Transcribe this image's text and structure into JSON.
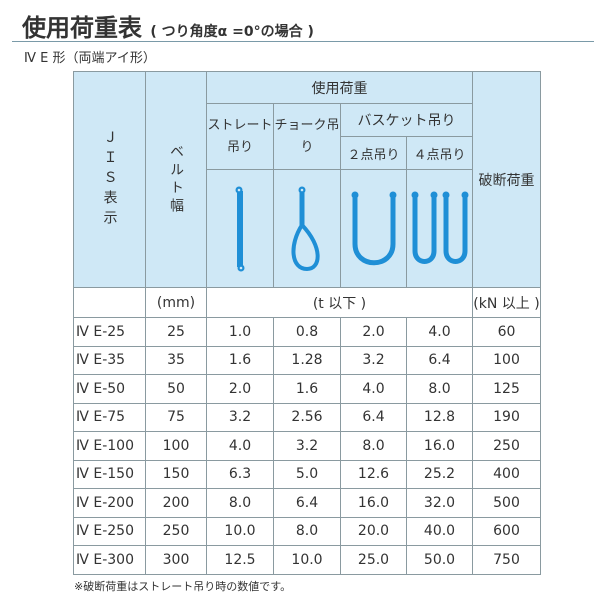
{
  "title": "使用荷重表",
  "title_sub": "( つり角度α =0°の場合 )",
  "subtitle": "Ⅳ E 形（両端アイ形）",
  "header": {
    "jis": "ＪＩＳ表示",
    "belt": "ベルト幅",
    "working_load": "使用荷重",
    "straight": "ストレート吊り",
    "choke": "チョーク吊り",
    "basket": "バスケット吊り",
    "two_point": "２点吊り",
    "four_point": "４点吊り",
    "breaking": "破断荷重"
  },
  "units": {
    "belt": "(mm)",
    "load": "(t 以下 )",
    "breaking": "(kN 以上 )"
  },
  "rows": [
    [
      "Ⅳ E-25",
      "25",
      "1.0",
      "0.8",
      "2.0",
      "4.0",
      "60"
    ],
    [
      "Ⅳ E-35",
      "35",
      "1.6",
      "1.28",
      "3.2",
      "6.4",
      "100"
    ],
    [
      "Ⅳ E-50",
      "50",
      "2.0",
      "1.6",
      "4.0",
      "8.0",
      "125"
    ],
    [
      "Ⅳ E-75",
      "75",
      "3.2",
      "2.56",
      "6.4",
      "12.8",
      "190"
    ],
    [
      "Ⅳ E-100",
      "100",
      "4.0",
      "3.2",
      "8.0",
      "16.0",
      "250"
    ],
    [
      "Ⅳ E-150",
      "150",
      "6.3",
      "5.0",
      "12.6",
      "25.2",
      "400"
    ],
    [
      "Ⅳ E-200",
      "200",
      "8.0",
      "6.4",
      "16.0",
      "32.0",
      "500"
    ],
    [
      "Ⅳ E-250",
      "250",
      "10.0",
      "8.0",
      "20.0",
      "40.0",
      "600"
    ],
    [
      "Ⅳ E-300",
      "300",
      "12.5",
      "10.0",
      "25.0",
      "50.0",
      "750"
    ]
  ],
  "footnote": "※破断荷重はストレート吊り時の数値です。",
  "colors": {
    "header_bg": "#cfe8f6",
    "sling": "#1f8fd6"
  }
}
